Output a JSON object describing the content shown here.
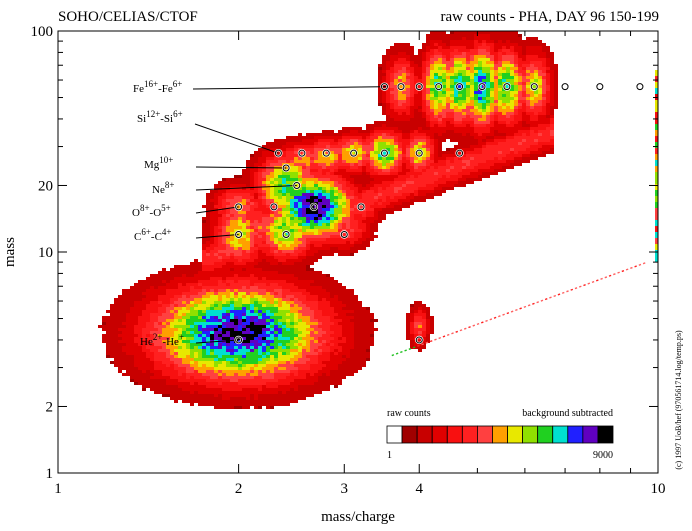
{
  "chart_data": {
    "type": "heatmap",
    "title_left": "SOHO/CELIAS/CTOF",
    "title_right": "raw counts - PHA, DAY 96 150-199",
    "xlabel": "mass/charge",
    "ylabel": "mass",
    "x_scale": "log",
    "y_scale": "log",
    "xlim": [
      1,
      10
    ],
    "ylim": [
      1,
      100
    ],
    "x_ticks": [
      {
        "value": 1,
        "label": "1"
      },
      {
        "value": 2,
        "label": "2"
      },
      {
        "value": 3,
        "label": "3"
      },
      {
        "value": 4,
        "label": "4"
      },
      {
        "value": 10,
        "label": "10"
      }
    ],
    "y_ticks": [
      {
        "value": 1,
        "label": "1"
      },
      {
        "value": 2,
        "label": "2"
      },
      {
        "value": 10,
        "label": "10"
      },
      {
        "value": 20,
        "label": "20"
      },
      {
        "value": 100,
        "label": "100"
      }
    ],
    "credit": "(c) 1997 UoB/hef (970561714.log/temp.ps)",
    "colorbar": {
      "label_left": "raw counts",
      "label_right": "background subtracted",
      "min_label": "1",
      "max_label": "9000",
      "colors": [
        "#ffffff",
        "#a00000",
        "#c80000",
        "#e00000",
        "#f81010",
        "#ff2020",
        "#ff4040",
        "#ffa000",
        "#e8e800",
        "#90e000",
        "#20d020",
        "#00e0d0",
        "#2020ff",
        "#6000c0",
        "#000000"
      ]
    },
    "annotations": [
      {
        "base": "Fe",
        "sup1": "16+",
        "mid": "-Fe",
        "sup2": "6+",
        "target_mq": 3.55,
        "target_m": 56
      },
      {
        "base": "Si",
        "sup1": "12+",
        "mid": "-Si",
        "sup2": "6+",
        "target_mq": 2.33,
        "target_m": 28
      },
      {
        "base": "Mg",
        "sup1": "10+",
        "mid": "",
        "sup2": "",
        "target_mq": 2.4,
        "target_m": 24
      },
      {
        "base": "Ne",
        "sup1": "8+",
        "mid": "",
        "sup2": "",
        "target_mq": 2.5,
        "target_m": 20
      },
      {
        "base": "O",
        "sup1": "8+",
        "mid": "-O",
        "sup2": "5+",
        "target_mq": 2.0,
        "target_m": 16
      },
      {
        "base": "C",
        "sup1": "6+",
        "mid": "-C",
        "sup2": "4+",
        "target_mq": 2.0,
        "target_m": 12
      },
      {
        "base": "He",
        "sup1": "2+",
        "mid": "-He",
        "sup2": "+",
        "target_mq": 2.0,
        "target_m": 4
      }
    ],
    "ion_markers": [
      {
        "mq": 3.5,
        "m": 56
      },
      {
        "mq": 3.73,
        "m": 56
      },
      {
        "mq": 4.0,
        "m": 56
      },
      {
        "mq": 4.31,
        "m": 56
      },
      {
        "mq": 4.67,
        "m": 56
      },
      {
        "mq": 5.09,
        "m": 56
      },
      {
        "mq": 5.6,
        "m": 56
      },
      {
        "mq": 6.22,
        "m": 56
      },
      {
        "mq": 7.0,
        "m": 56
      },
      {
        "mq": 8.0,
        "m": 56
      },
      {
        "mq": 9.33,
        "m": 56
      },
      {
        "mq": 2.33,
        "m": 28
      },
      {
        "mq": 2.55,
        "m": 28
      },
      {
        "mq": 2.8,
        "m": 28
      },
      {
        "mq": 3.11,
        "m": 28
      },
      {
        "mq": 3.5,
        "m": 28
      },
      {
        "mq": 4.0,
        "m": 28
      },
      {
        "mq": 4.67,
        "m": 28
      },
      {
        "mq": 2.4,
        "m": 24
      },
      {
        "mq": 2.5,
        "m": 20
      },
      {
        "mq": 2.0,
        "m": 16
      },
      {
        "mq": 2.29,
        "m": 16
      },
      {
        "mq": 2.67,
        "m": 16
      },
      {
        "mq": 3.2,
        "m": 16
      },
      {
        "mq": 2.0,
        "m": 12
      },
      {
        "mq": 2.4,
        "m": 12
      },
      {
        "mq": 3.0,
        "m": 12
      },
      {
        "mq": 2.0,
        "m": 4
      },
      {
        "mq": 4.0,
        "m": 4
      }
    ],
    "blobs": [
      {
        "mq": 2.0,
        "m": 4.3,
        "wx": 0.1,
        "wy": 0.15,
        "peak": 0.95
      },
      {
        "mq": 2.0,
        "m": 12,
        "wx": 0.03,
        "wy": 0.1,
        "peak": 0.55
      },
      {
        "mq": 2.0,
        "m": 16,
        "wx": 0.03,
        "wy": 0.07,
        "peak": 0.45
      },
      {
        "mq": 2.18,
        "m": 13,
        "wx": 0.03,
        "wy": 0.08,
        "peak": 0.4
      },
      {
        "mq": 2.4,
        "m": 12.5,
        "wx": 0.035,
        "wy": 0.09,
        "peak": 0.65
      },
      {
        "mq": 2.4,
        "m": 20,
        "wx": 0.035,
        "wy": 0.1,
        "peak": 0.7
      },
      {
        "mq": 2.67,
        "m": 16,
        "wx": 0.045,
        "wy": 0.1,
        "peak": 0.97
      },
      {
        "mq": 2.55,
        "m": 14,
        "wx": 0.04,
        "wy": 0.08,
        "peak": 0.65
      },
      {
        "mq": 3.0,
        "m": 13,
        "wx": 0.03,
        "wy": 0.07,
        "peak": 0.4
      },
      {
        "mq": 3.2,
        "m": 16,
        "wx": 0.025,
        "wy": 0.06,
        "peak": 0.35
      },
      {
        "mq": 2.55,
        "m": 26,
        "wx": 0.03,
        "wy": 0.06,
        "peak": 0.45
      },
      {
        "mq": 2.8,
        "m": 27,
        "wx": 0.03,
        "wy": 0.06,
        "peak": 0.5
      },
      {
        "mq": 3.11,
        "m": 28,
        "wx": 0.025,
        "wy": 0.06,
        "peak": 0.55
      },
      {
        "mq": 3.5,
        "m": 28,
        "wx": 0.025,
        "wy": 0.07,
        "peak": 0.7
      },
      {
        "mq": 4.0,
        "m": 28,
        "wx": 0.02,
        "wy": 0.07,
        "peak": 0.55
      },
      {
        "mq": 3.73,
        "m": 56,
        "wx": 0.02,
        "wy": 0.1,
        "peak": 0.5
      },
      {
        "mq": 4.31,
        "m": 56,
        "wx": 0.02,
        "wy": 0.12,
        "peak": 0.7
      },
      {
        "mq": 4.67,
        "m": 56,
        "wx": 0.022,
        "wy": 0.12,
        "peak": 0.75
      },
      {
        "mq": 5.09,
        "m": 56,
        "wx": 0.022,
        "wy": 0.13,
        "peak": 0.8
      },
      {
        "mq": 5.6,
        "m": 56,
        "wx": 0.022,
        "wy": 0.12,
        "peak": 0.7
      },
      {
        "mq": 6.22,
        "m": 56,
        "wx": 0.02,
        "wy": 0.11,
        "peak": 0.55
      },
      {
        "mq": 4.0,
        "m": 4.6,
        "wx": 0.012,
        "wy": 0.06,
        "peak": 0.4
      }
    ],
    "band": {
      "mq_min": 1.75,
      "mq_max": 6.7,
      "slope": 1.0,
      "offset": 0.72,
      "width": 0.055
    },
    "streak": {
      "mq_start": 3.6,
      "m_start": 3.4,
      "mq_end": 9.6,
      "m_end": 9.0
    }
  }
}
